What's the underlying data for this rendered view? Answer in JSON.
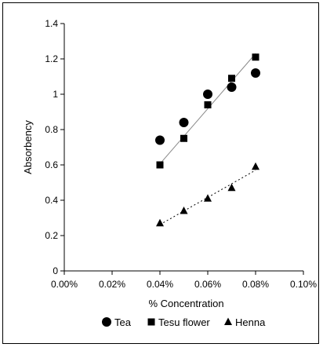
{
  "chart_data": {
    "type": "scatter",
    "title": "",
    "xlabel": "% Concentration",
    "ylabel": "Absorbency",
    "xlim": [
      0.0,
      0.1
    ],
    "ylim": [
      0,
      1.4
    ],
    "x_ticks": [
      "0.00%",
      "0.02%",
      "0.04%",
      "0.06%",
      "0.08%",
      "0.10%"
    ],
    "y_ticks": [
      "0",
      "0.2",
      "0.4",
      "0.6",
      "0.8",
      "1",
      "1.2",
      "1.4"
    ],
    "grid": false,
    "legend_position": "bottom",
    "series": [
      {
        "name": "Tea",
        "marker": "circle",
        "x": [
          0.04,
          0.05,
          0.06,
          0.07,
          0.08
        ],
        "y": [
          0.74,
          0.84,
          1.0,
          1.04,
          1.12
        ]
      },
      {
        "name": "Tesu flower",
        "marker": "square",
        "x": [
          0.04,
          0.05,
          0.06,
          0.07,
          0.08
        ],
        "y": [
          0.6,
          0.75,
          0.94,
          1.09,
          1.21
        ],
        "trendline": "solid"
      },
      {
        "name": "Henna",
        "marker": "triangle",
        "x": [
          0.04,
          0.05,
          0.06,
          0.07,
          0.08
        ],
        "y": [
          0.27,
          0.34,
          0.41,
          0.47,
          0.59
        ],
        "trendline": "dotted"
      }
    ],
    "colors": {
      "marker": "#000000",
      "trend_solid": "#888888",
      "trend_dotted": "#000000"
    }
  }
}
